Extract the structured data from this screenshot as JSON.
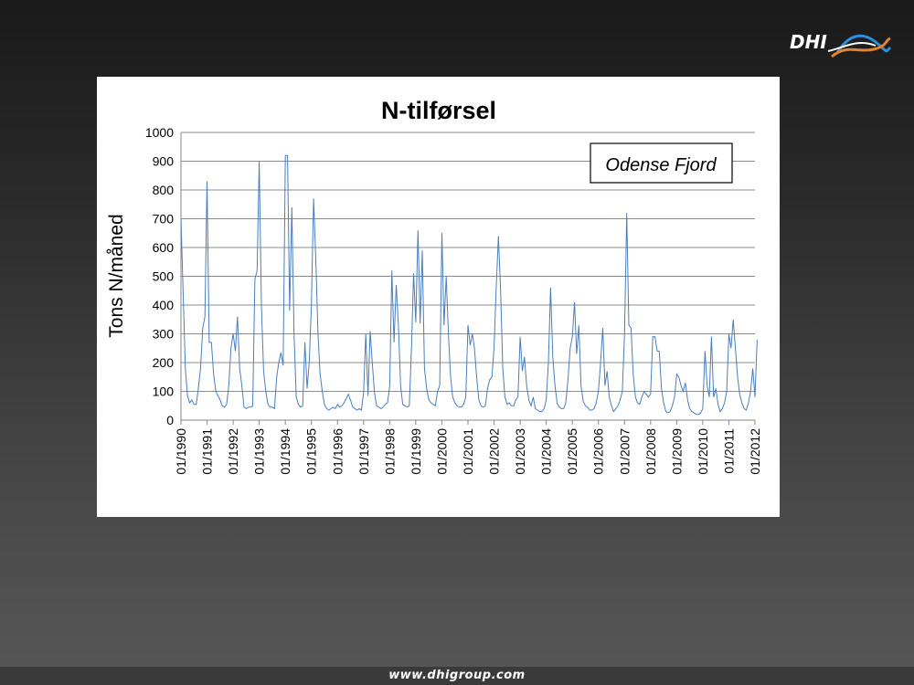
{
  "brand": {
    "logo_text": "DHI",
    "logo_colors": [
      "#ffffff",
      "#2f8fd8",
      "#e8822a"
    ],
    "website": "www.dhigroup.com"
  },
  "chart_data": {
    "type": "line",
    "title": "N-tilførsel",
    "ylabel": "Tons N/måned",
    "xlabel": "",
    "annotation": "Odense Fjord",
    "ylim": [
      0,
      1000
    ],
    "yticks": [
      0,
      100,
      200,
      300,
      400,
      500,
      600,
      700,
      800,
      900,
      1000
    ],
    "grid": "horizontal",
    "legend": "none",
    "line_color": "#4a7ebb",
    "x_range": [
      "1990-01",
      "2012-01"
    ],
    "x_ticks": [
      "01/1990",
      "01/1991",
      "01/1992",
      "01/1993",
      "01/1994",
      "01/1995",
      "01/1996",
      "01/1997",
      "01/1998",
      "01/1999",
      "01/2000",
      "01/2001",
      "01/2002",
      "01/2003",
      "01/2004",
      "01/2005",
      "01/2006",
      "01/2007",
      "01/2008",
      "01/2009",
      "01/2010",
      "01/2011",
      "01/2012"
    ],
    "series": [
      {
        "name": "",
        "values": [
          [
            "1990-01",
            700
          ],
          [
            "1990-02",
            440
          ],
          [
            "1990-03",
            180
          ],
          [
            "1990-04",
            85
          ],
          [
            "1990-05",
            60
          ],
          [
            "1990-06",
            70
          ],
          [
            "1990-07",
            55
          ],
          [
            "1990-08",
            55
          ],
          [
            "1990-09",
            110
          ],
          [
            "1990-10",
            180
          ],
          [
            "1990-11",
            320
          ],
          [
            "1990-12",
            360
          ],
          [
            "1991-01",
            830
          ],
          [
            "1991-02",
            270
          ],
          [
            "1991-03",
            270
          ],
          [
            "1991-04",
            160
          ],
          [
            "1991-05",
            100
          ],
          [
            "1991-06",
            85
          ],
          [
            "1991-07",
            70
          ],
          [
            "1991-08",
            50
          ],
          [
            "1991-09",
            45
          ],
          [
            "1991-10",
            55
          ],
          [
            "1991-11",
            120
          ],
          [
            "1991-12",
            250
          ],
          [
            "1992-01",
            300
          ],
          [
            "1992-02",
            240
          ],
          [
            "1992-03",
            360
          ],
          [
            "1992-04",
            180
          ],
          [
            "1992-05",
            120
          ],
          [
            "1992-06",
            45
          ],
          [
            "1992-07",
            40
          ],
          [
            "1992-08",
            45
          ],
          [
            "1992-09",
            45
          ],
          [
            "1992-10",
            50
          ],
          [
            "1992-11",
            490
          ],
          [
            "1992-12",
            520
          ],
          [
            "1993-01",
            900
          ],
          [
            "1993-02",
            400
          ],
          [
            "1993-03",
            170
          ],
          [
            "1993-04",
            100
          ],
          [
            "1993-05",
            55
          ],
          [
            "1993-06",
            45
          ],
          [
            "1993-07",
            45
          ],
          [
            "1993-08",
            40
          ],
          [
            "1993-09",
            150
          ],
          [
            "1993-10",
            200
          ],
          [
            "1993-11",
            235
          ],
          [
            "1993-12",
            190
          ],
          [
            "1994-01",
            920
          ],
          [
            "1994-02",
            920
          ],
          [
            "1994-03",
            380
          ],
          [
            "1994-04",
            740
          ],
          [
            "1994-05",
            300
          ],
          [
            "1994-06",
            80
          ],
          [
            "1994-07",
            55
          ],
          [
            "1994-08",
            45
          ],
          [
            "1994-09",
            50
          ],
          [
            "1994-10",
            270
          ],
          [
            "1994-11",
            110
          ],
          [
            "1994-12",
            200
          ],
          [
            "1995-01",
            400
          ],
          [
            "1995-02",
            770
          ],
          [
            "1995-03",
            560
          ],
          [
            "1995-04",
            300
          ],
          [
            "1995-05",
            160
          ],
          [
            "1995-06",
            100
          ],
          [
            "1995-07",
            55
          ],
          [
            "1995-08",
            40
          ],
          [
            "1995-09",
            35
          ],
          [
            "1995-10",
            40
          ],
          [
            "1995-11",
            45
          ],
          [
            "1995-12",
            40
          ],
          [
            "1996-01",
            55
          ],
          [
            "1996-02",
            45
          ],
          [
            "1996-03",
            50
          ],
          [
            "1996-04",
            60
          ],
          [
            "1996-05",
            75
          ],
          [
            "1996-06",
            90
          ],
          [
            "1996-07",
            70
          ],
          [
            "1996-08",
            45
          ],
          [
            "1996-09",
            40
          ],
          [
            "1996-10",
            35
          ],
          [
            "1996-11",
            40
          ],
          [
            "1996-12",
            35
          ],
          [
            "1997-01",
            95
          ],
          [
            "1997-02",
            300
          ],
          [
            "1997-03",
            85
          ],
          [
            "1997-04",
            310
          ],
          [
            "1997-05",
            200
          ],
          [
            "1997-06",
            95
          ],
          [
            "1997-07",
            50
          ],
          [
            "1997-08",
            45
          ],
          [
            "1997-09",
            40
          ],
          [
            "1997-10",
            45
          ],
          [
            "1997-11",
            55
          ],
          [
            "1997-12",
            60
          ],
          [
            "1998-01",
            120
          ],
          [
            "1998-02",
            520
          ],
          [
            "1998-03",
            270
          ],
          [
            "1998-04",
            470
          ],
          [
            "1998-05",
            330
          ],
          [
            "1998-06",
            120
          ],
          [
            "1998-07",
            55
          ],
          [
            "1998-08",
            50
          ],
          [
            "1998-09",
            45
          ],
          [
            "1998-10",
            50
          ],
          [
            "1998-11",
            250
          ],
          [
            "1998-12",
            510
          ],
          [
            "1999-01",
            340
          ],
          [
            "1999-02",
            660
          ],
          [
            "1999-03",
            335
          ],
          [
            "1999-04",
            590
          ],
          [
            "1999-05",
            180
          ],
          [
            "1999-06",
            110
          ],
          [
            "1999-07",
            70
          ],
          [
            "1999-08",
            60
          ],
          [
            "1999-09",
            55
          ],
          [
            "1999-10",
            50
          ],
          [
            "1999-11",
            100
          ],
          [
            "1999-12",
            120
          ],
          [
            "2000-01",
            650
          ],
          [
            "2000-02",
            330
          ],
          [
            "2000-03",
            500
          ],
          [
            "2000-04",
            300
          ],
          [
            "2000-05",
            150
          ],
          [
            "2000-06",
            80
          ],
          [
            "2000-07",
            60
          ],
          [
            "2000-08",
            50
          ],
          [
            "2000-09",
            45
          ],
          [
            "2000-10",
            45
          ],
          [
            "2000-11",
            55
          ],
          [
            "2000-12",
            80
          ],
          [
            "2001-01",
            330
          ],
          [
            "2001-02",
            260
          ],
          [
            "2001-03",
            300
          ],
          [
            "2001-04",
            250
          ],
          [
            "2001-05",
            150
          ],
          [
            "2001-06",
            70
          ],
          [
            "2001-07",
            50
          ],
          [
            "2001-08",
            45
          ],
          [
            "2001-09",
            50
          ],
          [
            "2001-10",
            110
          ],
          [
            "2001-11",
            140
          ],
          [
            "2001-12",
            150
          ],
          [
            "2002-01",
            250
          ],
          [
            "2002-02",
            460
          ],
          [
            "2002-03",
            640
          ],
          [
            "2002-04",
            450
          ],
          [
            "2002-05",
            180
          ],
          [
            "2002-06",
            80
          ],
          [
            "2002-07",
            55
          ],
          [
            "2002-08",
            60
          ],
          [
            "2002-09",
            50
          ],
          [
            "2002-10",
            50
          ],
          [
            "2002-11",
            70
          ],
          [
            "2002-12",
            80
          ],
          [
            "2003-01",
            290
          ],
          [
            "2003-02",
            170
          ],
          [
            "2003-03",
            220
          ],
          [
            "2003-04",
            120
          ],
          [
            "2003-05",
            70
          ],
          [
            "2003-06",
            50
          ],
          [
            "2003-07",
            80
          ],
          [
            "2003-08",
            40
          ],
          [
            "2003-09",
            35
          ],
          [
            "2003-10",
            30
          ],
          [
            "2003-11",
            30
          ],
          [
            "2003-12",
            40
          ],
          [
            "2004-01",
            70
          ],
          [
            "2004-02",
            200
          ],
          [
            "2004-03",
            460
          ],
          [
            "2004-04",
            220
          ],
          [
            "2004-05",
            120
          ],
          [
            "2004-06",
            60
          ],
          [
            "2004-07",
            45
          ],
          [
            "2004-08",
            40
          ],
          [
            "2004-09",
            40
          ],
          [
            "2004-10",
            60
          ],
          [
            "2004-11",
            140
          ],
          [
            "2004-12",
            250
          ],
          [
            "2005-01",
            290
          ],
          [
            "2005-02",
            410
          ],
          [
            "2005-03",
            230
          ],
          [
            "2005-04",
            330
          ],
          [
            "2005-05",
            120
          ],
          [
            "2005-06",
            65
          ],
          [
            "2005-07",
            50
          ],
          [
            "2005-08",
            45
          ],
          [
            "2005-09",
            35
          ],
          [
            "2005-10",
            35
          ],
          [
            "2005-11",
            40
          ],
          [
            "2005-12",
            60
          ],
          [
            "2006-01",
            100
          ],
          [
            "2006-02",
            200
          ],
          [
            "2006-03",
            320
          ],
          [
            "2006-04",
            120
          ],
          [
            "2006-05",
            170
          ],
          [
            "2006-06",
            80
          ],
          [
            "2006-07",
            50
          ],
          [
            "2006-08",
            30
          ],
          [
            "2006-09",
            40
          ],
          [
            "2006-10",
            50
          ],
          [
            "2006-11",
            70
          ],
          [
            "2006-12",
            100
          ],
          [
            "2007-01",
            300
          ],
          [
            "2007-02",
            720
          ],
          [
            "2007-03",
            330
          ],
          [
            "2007-04",
            320
          ],
          [
            "2007-05",
            160
          ],
          [
            "2007-06",
            80
          ],
          [
            "2007-07",
            60
          ],
          [
            "2007-08",
            55
          ],
          [
            "2007-09",
            80
          ],
          [
            "2007-10",
            100
          ],
          [
            "2007-11",
            90
          ],
          [
            "2007-12",
            80
          ],
          [
            "2008-01",
            90
          ],
          [
            "2008-02",
            290
          ],
          [
            "2008-03",
            290
          ],
          [
            "2008-04",
            240
          ],
          [
            "2008-05",
            240
          ],
          [
            "2008-06",
            110
          ],
          [
            "2008-07",
            60
          ],
          [
            "2008-08",
            30
          ],
          [
            "2008-09",
            25
          ],
          [
            "2008-10",
            30
          ],
          [
            "2008-11",
            50
          ],
          [
            "2008-12",
            80
          ],
          [
            "2009-01",
            160
          ],
          [
            "2009-02",
            150
          ],
          [
            "2009-03",
            120
          ],
          [
            "2009-04",
            100
          ],
          [
            "2009-05",
            130
          ],
          [
            "2009-06",
            70
          ],
          [
            "2009-07",
            40
          ],
          [
            "2009-08",
            30
          ],
          [
            "2009-09",
            25
          ],
          [
            "2009-10",
            20
          ],
          [
            "2009-11",
            20
          ],
          [
            "2009-12",
            25
          ],
          [
            "2010-01",
            40
          ],
          [
            "2010-02",
            240
          ],
          [
            "2010-03",
            120
          ],
          [
            "2010-04",
            80
          ],
          [
            "2010-05",
            290
          ],
          [
            "2010-06",
            80
          ],
          [
            "2010-07",
            110
          ],
          [
            "2010-08",
            55
          ],
          [
            "2010-09",
            30
          ],
          [
            "2010-10",
            40
          ],
          [
            "2010-11",
            60
          ],
          [
            "2010-12",
            100
          ],
          [
            "2011-01",
            300
          ],
          [
            "2011-02",
            250
          ],
          [
            "2011-03",
            350
          ],
          [
            "2011-04",
            250
          ],
          [
            "2011-05",
            150
          ],
          [
            "2011-06",
            90
          ],
          [
            "2011-07",
            60
          ],
          [
            "2011-08",
            40
          ],
          [
            "2011-09",
            35
          ],
          [
            "2011-10",
            60
          ],
          [
            "2011-11",
            100
          ],
          [
            "2011-12",
            180
          ],
          [
            "2012-01",
            80
          ],
          [
            "2012-02",
            280
          ]
        ]
      }
    ]
  }
}
